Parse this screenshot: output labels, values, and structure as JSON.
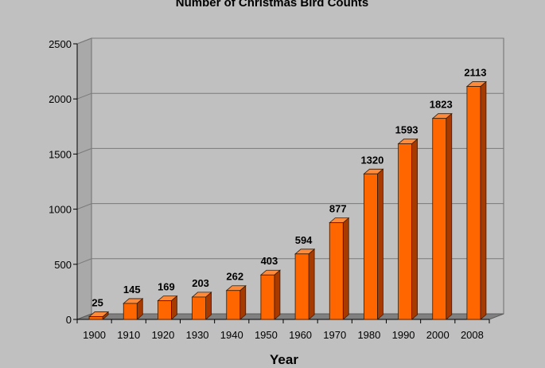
{
  "chart_data": {
    "type": "bar",
    "title": "Number of Christmas Bird Counts",
    "xlabel": "Year",
    "ylabel": "",
    "categories": [
      "1900",
      "1910",
      "1920",
      "1930",
      "1940",
      "1950",
      "1960",
      "1970",
      "1980",
      "1990",
      "2000",
      "2008"
    ],
    "values": [
      25,
      145,
      169,
      203,
      262,
      403,
      594,
      877,
      1320,
      1593,
      1823,
      2113
    ],
    "ylim": [
      0,
      2500
    ],
    "yticks": [
      0,
      500,
      1000,
      1500,
      2000,
      2500
    ],
    "grid": true,
    "legend": "none",
    "style": "3d",
    "colors": {
      "bar_front": "#ff6600",
      "bar_side": "#a83a00",
      "bar_top": "#ff8a3a",
      "bar_outline": "#3a1a00",
      "plot_back": "#c0c0c0",
      "floor": "#808080",
      "gridline": "#7a7a7a"
    }
  }
}
